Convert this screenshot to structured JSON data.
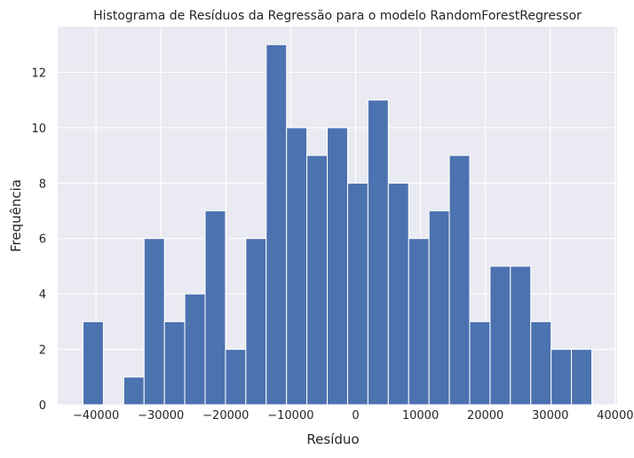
{
  "chart_data": {
    "type": "bar",
    "title": "Histograma de Resíduos da Regressão para o modelo RandomForestRegressor",
    "xlabel": "Resíduo",
    "ylabel": "Frequência",
    "bins": 25,
    "bin_range": [
      -42000,
      36400
    ],
    "counts": [
      3,
      0,
      1,
      6,
      3,
      4,
      7,
      2,
      6,
      13,
      10,
      9,
      10,
      8,
      11,
      8,
      6,
      7,
      9,
      3,
      5,
      5,
      3,
      2,
      2
    ],
    "xlim": [
      -45900,
      40300
    ],
    "ylim": [
      0,
      13.65
    ],
    "xticks": [
      -40000,
      -30000,
      -20000,
      -10000,
      0,
      10000,
      20000,
      30000,
      40000
    ],
    "xtick_labels": [
      "−40000",
      "−30000",
      "−20000",
      "−10000",
      "0",
      "10000",
      "20000",
      "30000",
      "40000"
    ],
    "yticks": [
      0,
      2,
      4,
      6,
      8,
      10,
      12
    ],
    "ytick_labels": [
      "0",
      "2",
      "4",
      "6",
      "8",
      "10",
      "12"
    ],
    "grid": true,
    "colors": {
      "bar": "#4c72b0",
      "bar_edge": "#ffffff",
      "plot_background": "#eaeaf2",
      "grid": "#ffffff",
      "text": "#262626"
    }
  }
}
